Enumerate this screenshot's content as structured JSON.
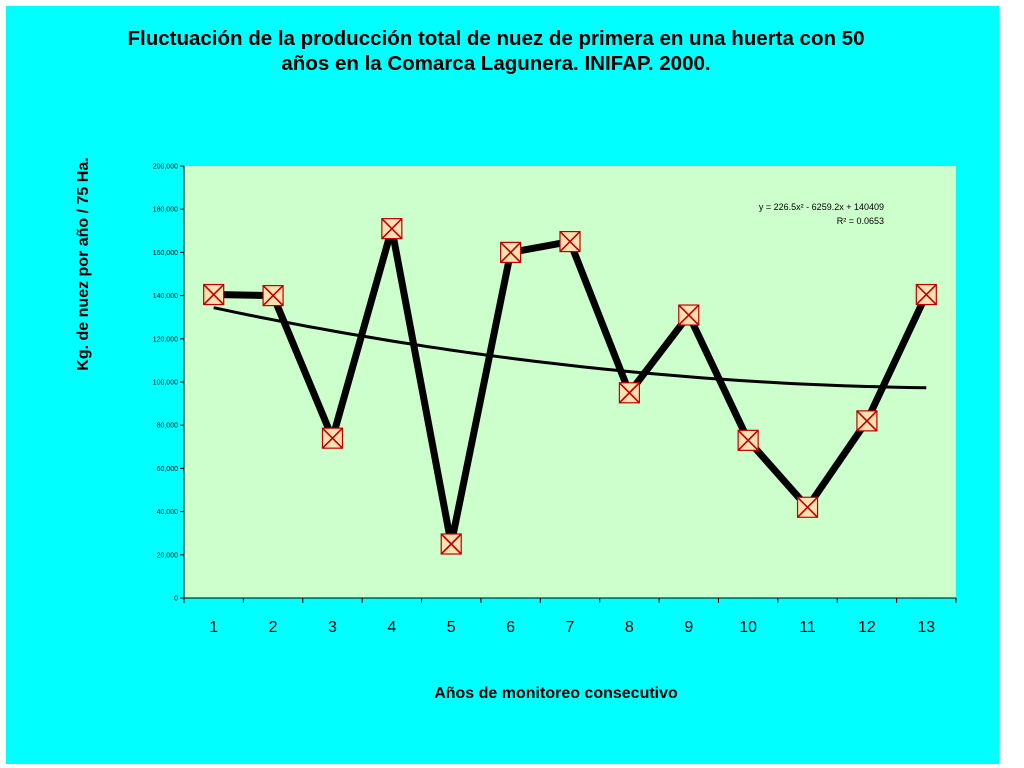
{
  "slide": {
    "background": "#00FFFF"
  },
  "chart_data": {
    "type": "line",
    "title": "Fluctuación de la producción total de nuez de primera en una huerta con 50 años en la Comarca Lagunera. INIFAP. 2000.",
    "title_lines": [
      "Fluctuación de la producción total de nuez de primera en una huerta con 50",
      "años en la Comarca Lagunera. INIFAP. 2000."
    ],
    "xlabel": "Años de monitoreo consecutivo",
    "ylabel": "Kg. de nuez por año / 75 Ha.",
    "categories": [
      "1",
      "2",
      "3",
      "4",
      "5",
      "6",
      "7",
      "8",
      "9",
      "10",
      "11",
      "12",
      "13"
    ],
    "x": [
      1,
      2,
      3,
      4,
      5,
      6,
      7,
      8,
      9,
      10,
      11,
      12,
      13
    ],
    "series": [
      {
        "values": [
          140500,
          140000,
          74000,
          171000,
          25000,
          160000,
          165000,
          95000,
          131000,
          73000,
          42000,
          82000,
          140500
        ],
        "color": "#000000",
        "marker": "x-in-box",
        "marker_color": "#C00000",
        "marker_fill": "#FFE0B0"
      }
    ],
    "trendline": {
      "type": "polynomial",
      "order": 2,
      "coefficients": [
        226.5,
        -6259.2,
        140409
      ],
      "equation": "y = 226.5x² - 6259.2x + 140409",
      "r_squared": "R² = 0.0653",
      "color": "#000000"
    },
    "ylim": [
      0,
      200000
    ],
    "yticks": [
      0,
      20000,
      40000,
      60000,
      80000,
      100000,
      120000,
      140000,
      160000,
      180000,
      200000
    ],
    "ytick_labels": [
      "0",
      "20,000",
      "40,000",
      "60,000",
      "80,000",
      "100,000",
      "120,000",
      "140,000",
      "160,000",
      "180,000",
      "200,000"
    ],
    "plot_background": "#CCFFCC",
    "grid": false,
    "legend": "none"
  }
}
